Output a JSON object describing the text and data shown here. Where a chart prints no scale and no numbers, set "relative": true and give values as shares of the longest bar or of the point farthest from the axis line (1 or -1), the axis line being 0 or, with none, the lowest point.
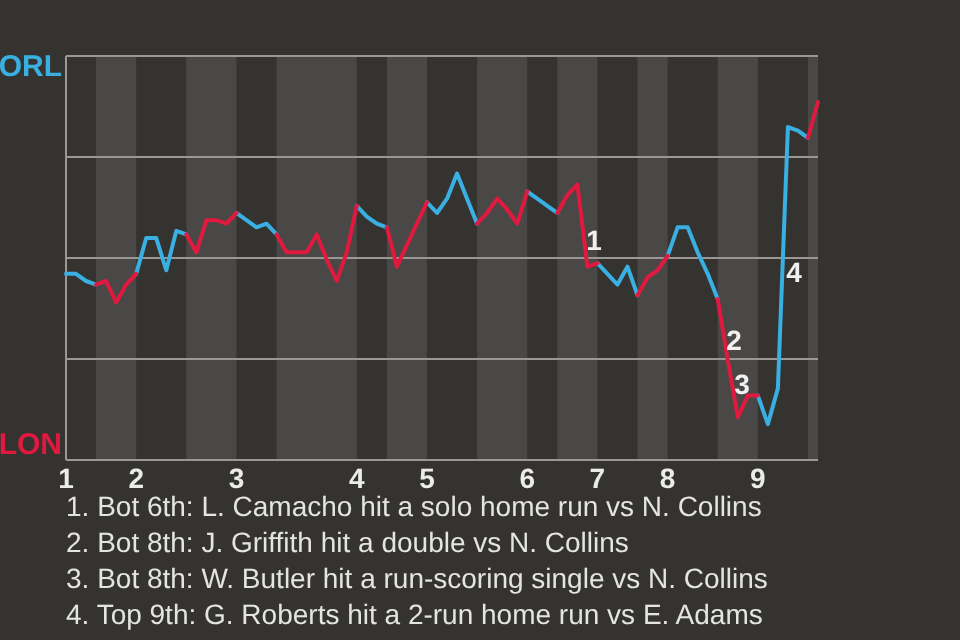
{
  "chart_data": {
    "type": "line",
    "relative": true,
    "categories": [
      "1",
      null,
      null,
      null,
      null,
      null,
      null,
      "2",
      null,
      null,
      null,
      null,
      null,
      null,
      null,
      null,
      null,
      "3",
      null,
      null,
      null,
      null,
      null,
      null,
      null,
      null,
      null,
      null,
      null,
      "4",
      null,
      null,
      null,
      null,
      null,
      null,
      "5",
      null,
      null,
      null,
      null,
      null,
      null,
      null,
      null,
      null,
      "6",
      null,
      null,
      null,
      null,
      null,
      null,
      "7",
      null,
      null,
      null,
      null,
      null,
      null,
      "8",
      null,
      null,
      null,
      null,
      null,
      null,
      null,
      null,
      "9",
      null,
      null,
      null,
      null,
      null,
      null
    ],
    "series": [
      {
        "name": "ORL",
        "color": "#3ab0e2",
        "values": [
          0.52,
          0.52,
          0.5,
          0.49,
          null,
          null,
          null,
          0.52,
          0.62,
          0.62,
          0.53,
          0.64,
          0.63,
          null,
          null,
          null,
          null,
          0.69,
          0.67,
          0.65,
          0.66,
          0.63,
          null,
          null,
          null,
          null,
          null,
          null,
          null,
          0.71,
          0.68,
          0.66,
          0.65,
          null,
          null,
          null,
          0.72,
          0.69,
          0.73,
          0.8,
          0.73,
          0.66,
          null,
          null,
          null,
          null,
          0.75,
          0.73,
          0.71,
          0.69,
          null,
          null,
          null,
          0.55,
          0.52,
          0.49,
          0.54,
          0.46,
          null,
          null,
          0.57,
          0.65,
          0.65,
          0.58,
          0.52,
          0.45,
          null,
          null,
          null,
          0.18,
          0.1,
          0.2,
          0.93,
          0.92,
          0.9,
          null
        ]
      },
      {
        "name": "LON",
        "color": "#e0193f",
        "values": [
          null,
          null,
          null,
          0.49,
          0.5,
          0.44,
          0.49,
          0.52,
          null,
          null,
          null,
          null,
          0.63,
          0.58,
          0.67,
          0.67,
          0.66,
          0.69,
          null,
          null,
          null,
          0.63,
          0.58,
          0.58,
          0.58,
          0.63,
          0.56,
          0.5,
          0.58,
          0.71,
          null,
          null,
          0.65,
          0.54,
          0.6,
          0.66,
          0.72,
          null,
          null,
          null,
          null,
          0.66,
          0.69,
          0.73,
          0.7,
          0.66,
          0.75,
          null,
          null,
          0.69,
          0.74,
          0.77,
          0.54,
          0.55,
          null,
          null,
          null,
          0.46,
          0.51,
          0.53,
          0.57,
          null,
          null,
          null,
          null,
          0.45,
          0.28,
          0.12,
          0.18,
          0.18,
          null,
          null,
          null,
          null,
          0.9,
          1
        ]
      }
    ],
    "legend": "left",
    "grid": "y",
    "marker": "none",
    "annotations": [
      "1",
      "2",
      "3",
      "4",
      "1. Bot 6th: L. Camacho hit a solo home run vs N. Collins",
      "2. Bot 8th: J. Griffith hit a double vs N. Collins",
      "3. Bot 8th: W. Butler hit a run-scoring single vs N. Collins",
      "4. Top 9th: G. Roberts hit a 2-run home run vs E. Adams"
    ]
  }
}
